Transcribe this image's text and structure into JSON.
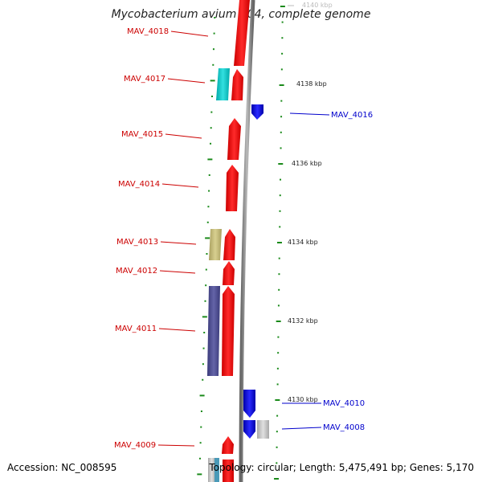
{
  "map": {
    "title": "Mycobacterium avium 104, complete genome",
    "accession": "Accession: NC_008595",
    "summary": "Topology: circular; Length: 5,475,491 bp; Genes: 5,170",
    "colors": {
      "forward_gene": "#ff0000",
      "reverse_gene": "#0000ff",
      "backbone": "#888888",
      "tick": "#1a8a1a",
      "label_forward": "#cc0000",
      "label_reverse": "#0000cc"
    },
    "scale_labels": [
      {
        "text": "4140 kbp",
        "faded": true
      },
      {
        "text": "4138 kbp"
      },
      {
        "text": "4136 kbp"
      },
      {
        "text": "4134 kbp"
      },
      {
        "text": "4132 kbp"
      },
      {
        "text": "4130 kbp"
      }
    ],
    "forward_genes": [
      "MAV_4018",
      "MAV_4017",
      "MAV_4015",
      "MAV_4014",
      "MAV_4013",
      "MAV_4012",
      "MAV_4011",
      "MAV_4009"
    ],
    "reverse_genes": [
      "MAV_4016",
      "MAV_4010",
      "MAV_4008"
    ],
    "feature_colors": [
      "#00cccc",
      "#c8c07a",
      "#555599",
      "#c8c8c8",
      "#9ec9d9"
    ]
  }
}
